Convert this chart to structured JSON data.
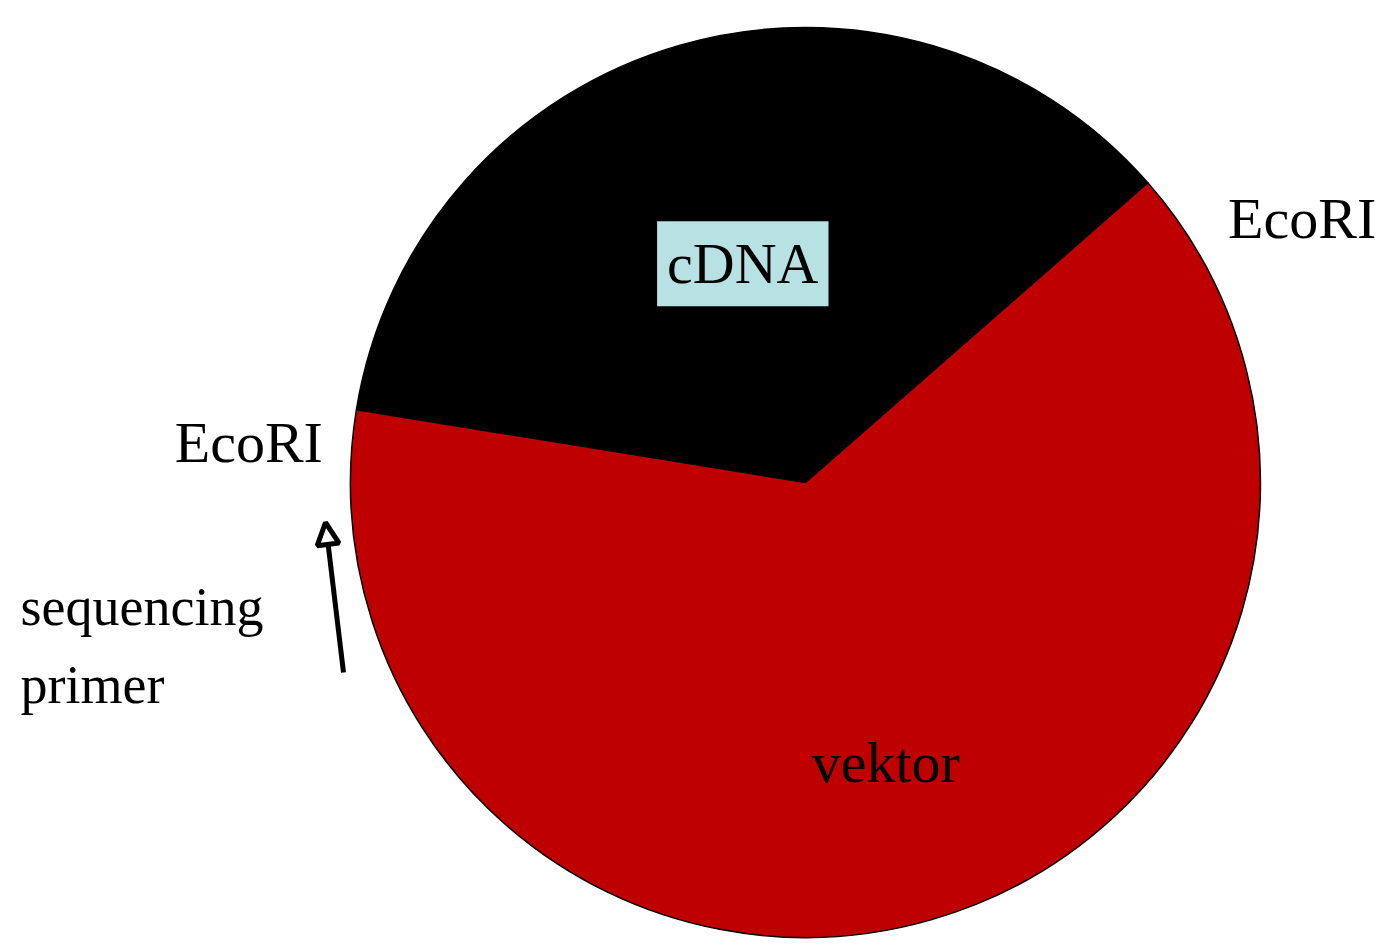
{
  "chart_data": {
    "type": "pie",
    "categories": [
      "cDNA",
      "vektor"
    ],
    "values": [
      36,
      64
    ],
    "colors": [
      "#000000",
      "#bf0000"
    ],
    "annotations": [
      "EcoRI",
      "EcoRI",
      "sequencing\nprimer"
    ]
  }
}
